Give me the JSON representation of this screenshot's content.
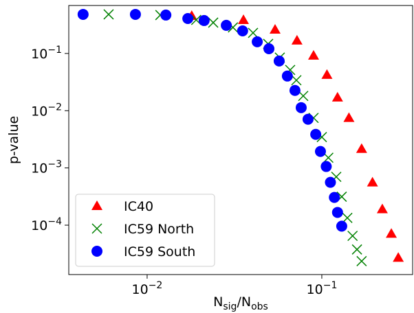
{
  "chart_data": {
    "type": "scatter",
    "x_label": "Nsig/Nobs",
    "y_label": "p-value",
    "xscale": "log",
    "yscale": "log",
    "xlim": [
      0.00356,
      0.331
    ],
    "ylim": [
      1.37e-05,
      0.689
    ],
    "xticks": [
      {
        "value": 0.01,
        "label": "10−2"
      },
      {
        "value": 0.1,
        "label": "10−1"
      }
    ],
    "yticks": [
      {
        "value": 0.0001,
        "label": "10−4"
      },
      {
        "value": 0.001,
        "label": "10−3"
      },
      {
        "value": 0.01,
        "label": "10−2"
      },
      {
        "value": 0.1,
        "label": "10−1"
      }
    ],
    "legend": "lower left",
    "series": [
      {
        "name": "IC40",
        "color": "#ff0000",
        "marker": "triangle",
        "x": [
          0.018,
          0.0356,
          0.054,
          0.0721,
          0.0897,
          0.107,
          0.123,
          0.143,
          0.169,
          0.195,
          0.222,
          0.25,
          0.274
        ],
        "values": [
          0.456,
          0.386,
          0.262,
          0.169,
          0.092,
          0.0425,
          0.0171,
          0.0075,
          0.00216,
          0.00056,
          0.000191,
          7.1e-05,
          2.7e-05
        ]
      },
      {
        "name": "IC59 North",
        "color": "#008000",
        "marker": "x",
        "x": [
          0.00602,
          0.0119,
          0.0191,
          0.0239,
          0.031,
          0.0404,
          0.0493,
          0.0575,
          0.0659,
          0.0715,
          0.0783,
          0.0897,
          0.1,
          0.109,
          0.121,
          0.13,
          0.14,
          0.15,
          0.159,
          0.169
        ],
        "values": [
          0.482,
          0.469,
          0.386,
          0.346,
          0.285,
          0.229,
          0.147,
          0.0847,
          0.0516,
          0.0341,
          0.0181,
          0.00748,
          0.00346,
          0.00151,
          0.000699,
          0.000314,
          0.000134,
          6.5e-05,
          3.76e-05,
          2.35e-05
        ]
      },
      {
        "name": "IC59 South",
        "color": "#0000ff",
        "marker": "circle",
        "x": [
          0.0043,
          0.00857,
          0.0128,
          0.0171,
          0.0212,
          0.0284,
          0.0352,
          0.0427,
          0.0498,
          0.057,
          0.0635,
          0.0702,
          0.0762,
          0.0834,
          0.0923,
          0.0982,
          0.106,
          0.112,
          0.118,
          0.123,
          0.13
        ],
        "values": [
          0.482,
          0.482,
          0.469,
          0.408,
          0.376,
          0.31,
          0.248,
          0.16,
          0.121,
          0.0738,
          0.0403,
          0.0226,
          0.0113,
          0.00708,
          0.00386,
          0.00194,
          0.00106,
          0.00056,
          0.000305,
          0.000167,
          9.6e-05
        ]
      }
    ]
  }
}
